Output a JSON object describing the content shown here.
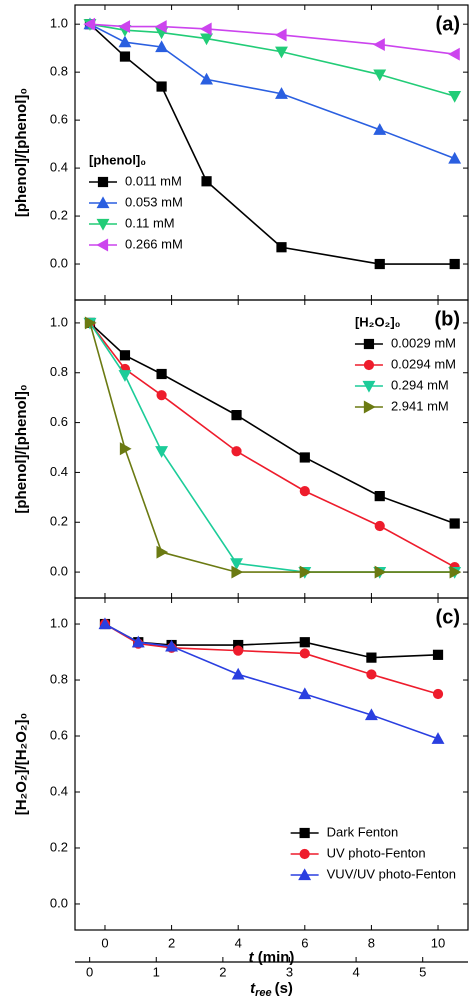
{
  "chart_data": [
    {
      "type": "line",
      "panel_label": "(a)",
      "ylabel": "[phenol]/[phenol]₀",
      "xlim": [
        -0.9,
        10.9
      ],
      "xticks": [
        0,
        2,
        4,
        6,
        8,
        10
      ],
      "ylim": [
        -0.15,
        1.08
      ],
      "yticks": [
        {
          "value": 0,
          "label": "0.0"
        },
        {
          "value": 0.2,
          "label": "0.2"
        },
        {
          "value": 0.4,
          "label": "0.4"
        },
        {
          "value": 0.6,
          "label": "0.6"
        },
        {
          "value": 0.8,
          "label": "0.8"
        },
        {
          "value": 1,
          "label": "1.0"
        }
      ],
      "legend_title": "[phenol]₀",
      "legend": "lower left",
      "x": [
        -0.45,
        0.6,
        1.7,
        3.05,
        5.3,
        8.25,
        10.5
      ],
      "series": [
        {
          "name": "0.011 mM",
          "color": "#000000",
          "marker": "square",
          "values": [
            1.0,
            0.865,
            0.74,
            0.345,
            0.07,
            0.0,
            0.0
          ]
        },
        {
          "name": "0.053 mM",
          "color": "#2a5fe0",
          "marker": "triangle-up",
          "values": [
            1.0,
            0.925,
            0.905,
            0.77,
            0.71,
            0.56,
            0.44
          ]
        },
        {
          "name": "0.11 mM",
          "color": "#22cc77",
          "marker": "triangle-down",
          "values": [
            1.0,
            0.975,
            0.965,
            0.94,
            0.885,
            0.79,
            0.7
          ]
        },
        {
          "name": "0.266 mM",
          "color": "#cc44ee",
          "marker": "triangle-left",
          "values": [
            1.0,
            0.99,
            0.99,
            0.98,
            0.955,
            0.915,
            0.875
          ]
        }
      ]
    },
    {
      "type": "line",
      "panel_label": "(b)",
      "ylabel": "[phenol]/[phenol]₀",
      "xlim": [
        -0.9,
        10.9
      ],
      "xticks": [
        0,
        2,
        4,
        6,
        8,
        10
      ],
      "ylim": [
        -0.104,
        1.092
      ],
      "yticks": [
        {
          "value": 0,
          "label": "0.0"
        },
        {
          "value": 0.2,
          "label": "0.2"
        },
        {
          "value": 0.4,
          "label": "0.4"
        },
        {
          "value": 0.6,
          "label": "0.6"
        },
        {
          "value": 0.8,
          "label": "0.8"
        },
        {
          "value": 1,
          "label": "1.0"
        }
      ],
      "legend_title": "[H₂O₂]₀",
      "legend": "upper right",
      "x": [
        -0.45,
        0.6,
        1.7,
        3.95,
        6.0,
        8.25,
        10.5
      ],
      "series": [
        {
          "name": "0.0029 mM",
          "color": "#000000",
          "marker": "square",
          "values": [
            1.0,
            0.87,
            0.795,
            0.63,
            0.46,
            0.305,
            0.195
          ]
        },
        {
          "name": "0.0294 mM",
          "color": "#ee1c2c",
          "marker": "circle",
          "values": [
            1.0,
            0.815,
            0.71,
            0.485,
            0.325,
            0.185,
            0.02
          ]
        },
        {
          "name": "0.294 mM",
          "color": "#1ccc99",
          "marker": "triangle-down",
          "values": [
            1.0,
            0.79,
            0.485,
            0.035,
            0.0,
            0.0,
            0.0
          ]
        },
        {
          "name": "2.941 mM",
          "color": "#6b7a12",
          "marker": "triangle-right",
          "values": [
            1.0,
            0.495,
            0.08,
            0.0,
            0.0,
            0.0,
            0.0
          ]
        }
      ]
    },
    {
      "type": "line",
      "panel_label": "(c)",
      "ylabel": "[H₂O₂]/[H₂O₂]₀",
      "xlim": [
        -0.9,
        10.9
      ],
      "xticks": [
        0,
        2,
        4,
        6,
        8,
        10
      ],
      "xlabel": {
        "var": "t",
        "unit": "(min)"
      },
      "x2lim": [
        -0.22,
        5.68
      ],
      "x2ticks": [
        0,
        1,
        2,
        3,
        4,
        5
      ],
      "x2label": {
        "var": "t",
        "sub": "ree",
        "unit": "(s)"
      },
      "ylim": [
        -0.093,
        1.093
      ],
      "yticks": [
        {
          "value": 0,
          "label": "0.0"
        },
        {
          "value": 0.2,
          "label": "0.2"
        },
        {
          "value": 0.4,
          "label": "0.4"
        },
        {
          "value": 0.6,
          "label": "0.6"
        },
        {
          "value": 0.8,
          "label": "0.8"
        },
        {
          "value": 1,
          "label": "1.0"
        }
      ],
      "legend": "lower right",
      "x": [
        0,
        1,
        2,
        4,
        6,
        8,
        10
      ],
      "series": [
        {
          "name": "Dark Fenton",
          "color": "#000000",
          "marker": "square",
          "values": [
            1.0,
            0.935,
            0.925,
            0.925,
            0.935,
            0.88,
            0.89
          ]
        },
        {
          "name": "UV photo-Fenton",
          "color": "#ee1c2c",
          "marker": "circle",
          "values": [
            1.0,
            0.93,
            0.915,
            0.905,
            0.895,
            0.82,
            0.75
          ]
        },
        {
          "name": "VUV/UV photo-Fenton",
          "color": "#2a3fe0",
          "marker": "triangle-up",
          "values": [
            1.0,
            0.935,
            0.92,
            0.82,
            0.75,
            0.675,
            0.59
          ]
        }
      ]
    }
  ]
}
